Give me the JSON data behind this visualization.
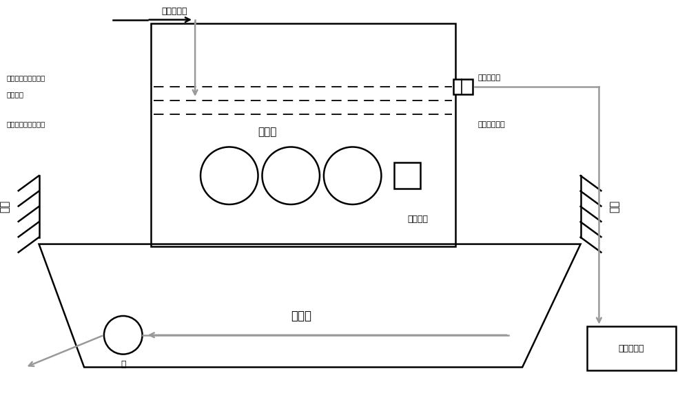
{
  "bg_color": "#ffffff",
  "line_color": "#000000",
  "gray_color": "#999999",
  "fig_width": 10.0,
  "fig_height": 5.84,
  "dpi": 100,
  "labels": {
    "inlet_arrow": "脱脂液进入",
    "level_high": "液位高于油污排放口",
    "level_normal": "正常液位",
    "level_low": "液位低于油污排放口",
    "heater": "加热器",
    "temp_probe": "温度探头",
    "oil_outlet": "油污排放口",
    "degreaser_return": "脱脂液回流口",
    "spray_left": "喷淋",
    "spray_right": "喷淋",
    "tank_label": "脱脂槽",
    "pump_label": "泵",
    "oil_box": "油污收集箱"
  }
}
